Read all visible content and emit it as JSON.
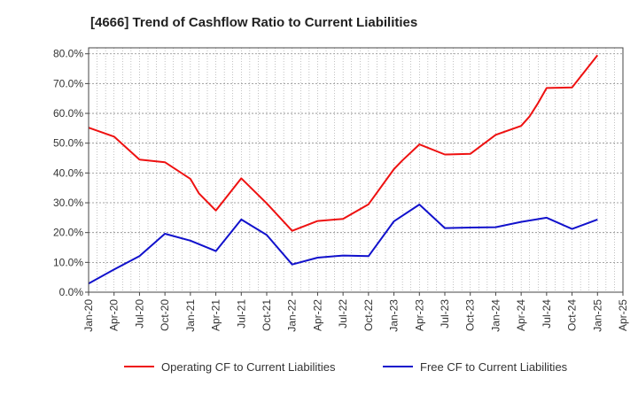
{
  "chart_data": {
    "type": "line",
    "title": "[4666]  Trend of Cashflow Ratio to Current Liabilities",
    "xlabel": "",
    "ylabel": "",
    "ylim": [
      0,
      82
    ],
    "yticks": [
      0,
      10,
      20,
      30,
      40,
      50,
      60,
      70,
      80
    ],
    "ytick_labels": [
      "0.0%",
      "10.0%",
      "20.0%",
      "30.0%",
      "40.0%",
      "50.0%",
      "60.0%",
      "70.0%",
      "80.0%"
    ],
    "x_ticks": [
      "Jan-20",
      "Apr-20",
      "Jul-20",
      "Oct-20",
      "Jan-21",
      "Apr-21",
      "Jul-21",
      "Oct-21",
      "Jan-22",
      "Apr-22",
      "Jul-22",
      "Oct-22",
      "Jan-23",
      "Apr-23",
      "Jul-23",
      "Oct-23",
      "Jan-24",
      "Apr-24",
      "Jul-24",
      "Oct-24",
      "Jan-25",
      "Apr-25"
    ],
    "grid": true,
    "legend_position": "bottom",
    "series": [
      {
        "name": "Operating CF to Current Liabilities",
        "color": "#ee1111",
        "x": [
          "Jan-20",
          "Apr-20",
          "Jul-20",
          "Oct-20",
          "Jan-21",
          "Feb-21",
          "Apr-21",
          "Jul-21",
          "Oct-21",
          "Jan-22",
          "Apr-22",
          "Jul-22",
          "Oct-22",
          "Jan-23",
          "Feb-23",
          "Apr-23",
          "Jul-23",
          "Oct-23",
          "Jan-24",
          "Apr-24",
          "May-24",
          "Jun-24",
          "Jul-24",
          "Oct-24",
          "Jan-25"
        ],
        "values": [
          55.2,
          52.2,
          44.5,
          43.6,
          38.0,
          33.2,
          27.4,
          38.2,
          29.8,
          20.6,
          23.9,
          24.6,
          29.5,
          41.3,
          44.2,
          49.6,
          46.2,
          46.4,
          52.8,
          55.8,
          59.0,
          63.5,
          68.5,
          68.7,
          79.5
        ]
      },
      {
        "name": "Free CF to Current Liabilities",
        "color": "#1111cc",
        "x": [
          "Jan-20",
          "Apr-20",
          "Jul-20",
          "Oct-20",
          "Jan-21",
          "Apr-21",
          "Jul-21",
          "Oct-21",
          "Jan-22",
          "Apr-22",
          "Jul-22",
          "Oct-22",
          "Jan-23",
          "Apr-23",
          "Jul-23",
          "Oct-23",
          "Jan-24",
          "Apr-24",
          "Jul-24",
          "Oct-24",
          "Jan-25"
        ],
        "values": [
          2.9,
          7.6,
          12.1,
          19.6,
          17.3,
          13.8,
          24.4,
          19.2,
          9.3,
          11.6,
          12.3,
          12.1,
          23.8,
          29.4,
          21.5,
          21.7,
          21.8,
          23.6,
          25.0,
          21.2,
          24.4
        ]
      }
    ]
  }
}
